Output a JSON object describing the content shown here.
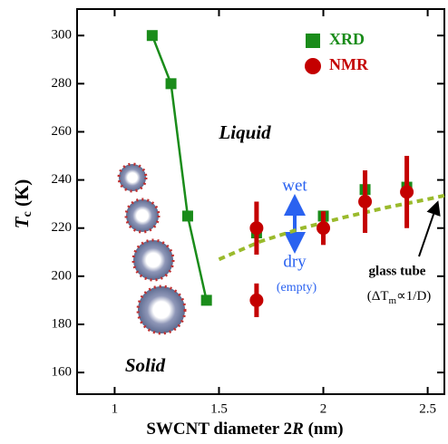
{
  "chart_data": {
    "type": "scatter",
    "x_label": [
      "SWCNT diameter 2",
      "R",
      " (nm)"
    ],
    "y_label": [
      "T",
      "c",
      " (K)"
    ],
    "xlim": [
      0.82,
      2.58
    ],
    "ylim": [
      151,
      311
    ],
    "xticks": [
      1,
      1.5,
      2,
      2.5
    ],
    "yticks": [
      160,
      180,
      200,
      220,
      240,
      260,
      280,
      300
    ],
    "legend": "upper right",
    "series": [
      {
        "name": "XRD",
        "color": "#1a8c1a",
        "marker": "square",
        "x": [
          1.18,
          1.27,
          1.35,
          1.44,
          null,
          1.68,
          null,
          2.0,
          null,
          2.2,
          null,
          2.4
        ],
        "values": [
          300,
          280,
          225,
          190,
          null,
          218,
          null,
          225,
          null,
          236,
          null,
          237
        ]
      },
      {
        "name": "NMR",
        "color": "#c40000",
        "marker": "circle",
        "x": [
          1.68,
          1.68,
          2.0,
          2.2,
          2.4
        ],
        "values": [
          220,
          190,
          220,
          231,
          235
        ],
        "errors": [
          11,
          7,
          7,
          13,
          15
        ]
      }
    ],
    "fit_curve": {
      "color": "#9aba2c",
      "dashed": true,
      "x": [
        1.5,
        1.7,
        1.9,
        2.1,
        2.3,
        2.5,
        2.58
      ],
      "values": [
        207,
        214.5,
        220,
        224.5,
        228.5,
        232,
        233.5
      ]
    },
    "annotations": {
      "liquid": "Liquid",
      "solid": "Solid",
      "wet": "wet",
      "dry": "dry",
      "empty": "(empty)",
      "glass_tube": "glass tube",
      "relation": [
        "(ΔT",
        "m",
        "∝1/D)"
      ]
    }
  }
}
